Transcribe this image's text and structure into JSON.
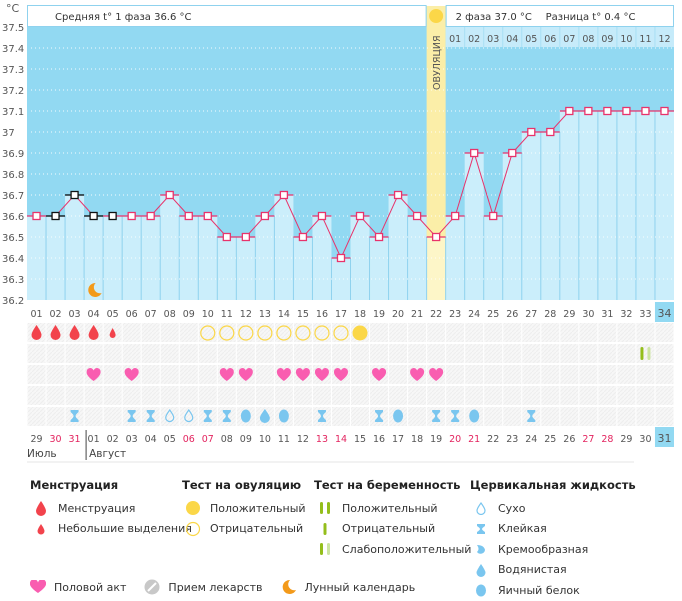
{
  "header": {
    "unit_label": "°C",
    "phase1_label": "Средняя t° 1 фаза",
    "phase1_value": "36.6 °C",
    "phase2_label": "2 фаза",
    "phase2_value": "37.0 °C",
    "diff_label": "Разница t°",
    "diff_value": "0.4 °C",
    "ovulation_label": "ОВУЛЯЦИЯ"
  },
  "colors": {
    "sky": "#92d9f2",
    "bar_fill": "#cbeefb",
    "line": "#e8336b",
    "ovulation": "#fbeea8",
    "menstruation": "#f2434c",
    "heart": "#f95db0",
    "ovulation_test": "#fbd748",
    "fluid": "#7ac6ef",
    "pregnancy_test": "#94be1c",
    "pregnancy_test_light": "#cde5a2",
    "moon": "#f39a1a",
    "weekend": "#e3245f"
  },
  "chart_data": {
    "type": "line",
    "title": "",
    "xlabel": "",
    "ylabel": "°C",
    "ylim": [
      36.2,
      37.5
    ],
    "yticks": [
      "37.5",
      "37.4",
      "37.3",
      "37.2",
      "37.1",
      "37",
      "36.9",
      "36.8",
      "36.7",
      "36.6",
      "36.5",
      "36.4",
      "36.3",
      "36.2"
    ],
    "grid": true,
    "cycle_days": [
      "01",
      "02",
      "03",
      "04",
      "05",
      "06",
      "07",
      "08",
      "09",
      "10",
      "11",
      "12",
      "13",
      "14",
      "15",
      "16",
      "17",
      "18",
      "19",
      "20",
      "21",
      "22",
      "23",
      "24",
      "25",
      "26",
      "27",
      "28",
      "29",
      "30",
      "31",
      "32",
      "33",
      "34"
    ],
    "temperatures": [
      36.6,
      36.6,
      36.7,
      36.6,
      36.6,
      36.6,
      36.6,
      36.7,
      36.6,
      36.6,
      36.5,
      36.5,
      36.6,
      36.7,
      36.5,
      36.6,
      36.4,
      36.6,
      36.5,
      36.7,
      36.6,
      36.5,
      36.6,
      36.9,
      36.6,
      36.9,
      37.0,
      37.0,
      37.1,
      37.1,
      37.1,
      37.1,
      37.1,
      37.1
    ],
    "manual_points_days": [
      2,
      3,
      4,
      5
    ],
    "ovulation_day": 22,
    "current_day": 34,
    "phase2_day_labels": [
      "01",
      "02",
      "03",
      "04",
      "05",
      "06",
      "07",
      "08",
      "09",
      "10",
      "11",
      "12"
    ],
    "moon_day": 4,
    "dates": [
      "29",
      "30",
      "31",
      "01",
      "02",
      "03",
      "04",
      "05",
      "06",
      "07",
      "08",
      "09",
      "10",
      "11",
      "12",
      "13",
      "14",
      "15",
      "16",
      "17",
      "18",
      "19",
      "20",
      "21",
      "22",
      "23",
      "24",
      "25",
      "26",
      "27",
      "28",
      "29",
      "30",
      "31"
    ],
    "weekend_indices": [
      1,
      2,
      8,
      9,
      15,
      16,
      22,
      23,
      29,
      30
    ],
    "month_labels": [
      {
        "label": "Июль",
        "start_index": 0
      },
      {
        "label": "Август",
        "start_index": 3
      }
    ],
    "menstruation": [
      "full",
      "full",
      "full",
      "full",
      "light",
      "",
      "",
      "",
      "",
      "",
      "",
      "",
      "",
      "",
      "",
      "",
      "",
      "",
      "",
      "",
      "",
      "",
      "",
      "",
      "",
      "",
      "",
      "",
      "",
      "",
      "",
      "",
      "",
      ""
    ],
    "ovulation_tests": [
      "",
      "",
      "",
      "",
      "",
      "",
      "",
      "",
      "",
      "neg",
      "neg",
      "neg",
      "neg",
      "neg",
      "neg",
      "neg",
      "neg",
      "pos",
      "",
      "",
      "",
      "",
      "",
      "",
      "",
      "",
      "",
      "",
      "",
      "",
      "",
      "",
      "",
      ""
    ],
    "pregnancy_tests": [
      "",
      "",
      "",
      "",
      "",
      "",
      "",
      "",
      "",
      "",
      "",
      "",
      "",
      "",
      "",
      "",
      "",
      "",
      "",
      "",
      "",
      "",
      "",
      "",
      "",
      "",
      "",
      "",
      "",
      "",
      "",
      "",
      "weak",
      ""
    ],
    "intercourse_days": [
      4,
      6,
      11,
      12,
      14,
      15,
      16,
      17,
      19,
      21,
      22
    ],
    "cervical_fluid": [
      "",
      "",
      "sticky",
      "",
      "",
      "sticky",
      "sticky",
      "dry",
      "dry",
      "sticky",
      "sticky",
      "egg",
      "watery",
      "egg",
      "",
      "sticky",
      "",
      "",
      "sticky",
      "egg",
      "",
      "sticky",
      "sticky",
      "egg",
      "",
      "",
      "sticky",
      "",
      "",
      "",
      "",
      "",
      "",
      ""
    ]
  },
  "legend": {
    "menstruation": {
      "title": "Менструация",
      "items": [
        "Менструация",
        "Небольшие выделения"
      ]
    },
    "ovulation_test": {
      "title": "Тест на овуляцию",
      "items": [
        "Положительный",
        "Отрицательный"
      ]
    },
    "pregnancy_test": {
      "title": "Тест на беременность",
      "items": [
        "Положительный",
        "Отрицательный",
        "Слабоположительный"
      ]
    },
    "cervical_fluid": {
      "title": "Цервикальная жидкость",
      "items": [
        "Сухо",
        "Клейкая",
        "Кремообразная",
        "Водянистая",
        "Яичный белок"
      ]
    },
    "bottom": [
      "Половой акт",
      "Прием лекарств",
      "Лунный календарь"
    ]
  }
}
